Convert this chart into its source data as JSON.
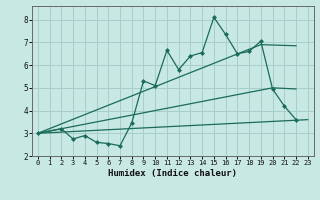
{
  "xlabel": "Humidex (Indice chaleur)",
  "bg_color": "#c8e8e4",
  "line_color": "#1a6b5a",
  "grid_color": "#a8ceca",
  "xlim": [
    -0.5,
    23.5
  ],
  "ylim": [
    2.0,
    8.6
  ],
  "xticks": [
    0,
    1,
    2,
    3,
    4,
    5,
    6,
    7,
    8,
    9,
    10,
    11,
    12,
    13,
    14,
    15,
    16,
    17,
    18,
    19,
    20,
    21,
    22,
    23
  ],
  "yticks": [
    2,
    3,
    4,
    5,
    6,
    7,
    8
  ],
  "series": [
    {
      "x": [
        0,
        2,
        3,
        4,
        5,
        6,
        7,
        8,
        9,
        10,
        11,
        12,
        13,
        14,
        15,
        16,
        17,
        18,
        19,
        20,
        21,
        22
      ],
      "y": [
        3.0,
        3.2,
        2.75,
        2.9,
        2.6,
        2.55,
        2.45,
        3.45,
        5.3,
        5.1,
        6.65,
        5.8,
        6.4,
        6.55,
        8.1,
        7.35,
        6.5,
        6.6,
        7.05,
        4.95,
        4.2,
        3.6
      ],
      "marker": "D",
      "ms": 2.0,
      "lw": 0.9
    },
    {
      "x": [
        0,
        23
      ],
      "y": [
        3.0,
        3.6
      ],
      "marker": null,
      "ms": 0,
      "lw": 0.9
    },
    {
      "x": [
        0,
        20,
        22
      ],
      "y": [
        3.0,
        5.0,
        4.95
      ],
      "marker": null,
      "ms": 0,
      "lw": 0.9
    },
    {
      "x": [
        0,
        19,
        22
      ],
      "y": [
        3.0,
        6.9,
        6.85
      ],
      "marker": null,
      "ms": 0,
      "lw": 0.9
    }
  ]
}
